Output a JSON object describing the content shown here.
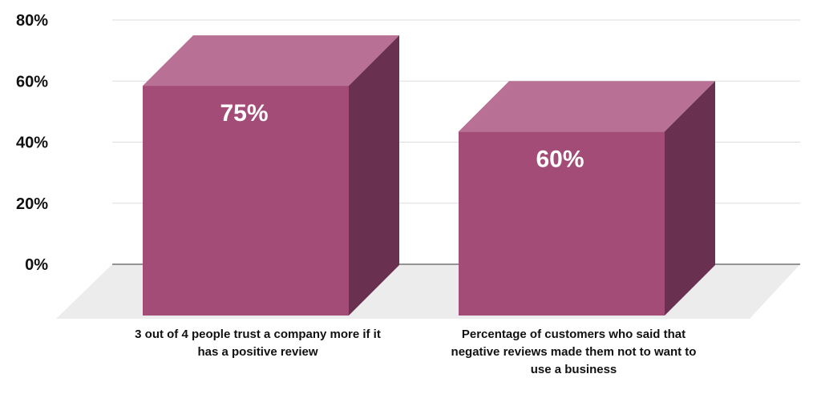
{
  "chart_data": {
    "type": "bar",
    "style": "3d",
    "categories": [
      "3 out of 4 people trust a company more if it has a positive review",
      "Percentage of customers who said that negative reviews made them not to want to use a business"
    ],
    "values": [
      75,
      60
    ],
    "data_labels": [
      "75%",
      "60%"
    ],
    "y_ticks": [
      "0%",
      "20%",
      "40%",
      "60%",
      "80%"
    ],
    "ylim": [
      0,
      80
    ],
    "grid": true,
    "title": "",
    "xlabel": "",
    "ylabel": "",
    "colors": {
      "front": "#a44c78",
      "top": "#b87194",
      "side": "#6a3050",
      "floor": "#ececec",
      "grid": "#dddddd",
      "axis": "#333333"
    }
  }
}
